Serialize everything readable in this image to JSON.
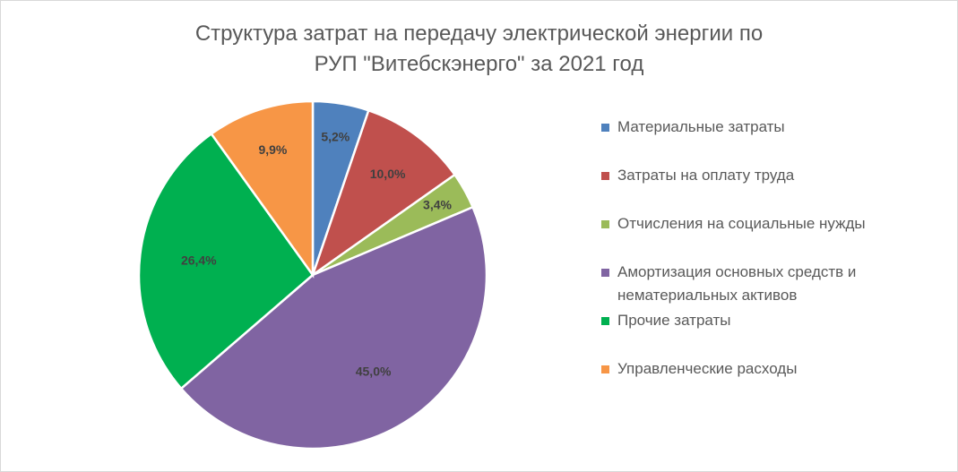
{
  "chart_data": {
    "type": "pie",
    "title": "Структура затрат на передачу электрической энергии по РУП \"Витебскэнерго\" за 2021 год",
    "title_lines": [
      "Структура затрат на передачу электрической энергии по",
      "РУП \"Витебскэнерго\" за 2021 год"
    ],
    "legend_position": "right",
    "slices": [
      {
        "label": "Материальные затраты",
        "value": 5.2,
        "display": "5,2%",
        "color": "#4f81bd"
      },
      {
        "label": "Затраты на оплату труда",
        "value": 10.0,
        "display": "10,0%",
        "color": "#c0504d"
      },
      {
        "label": "Отчисления на социальные нужды",
        "value": 3.4,
        "display": "3,4%",
        "color": "#9bbb59"
      },
      {
        "label": "Амортизация основных средств и нематериальных активов",
        "label_lines": [
          "Амортизация основных средств и",
          "нематериальных активов"
        ],
        "value": 45.0,
        "display": "45,0%",
        "color": "#8064a2"
      },
      {
        "label": "Прочие затраты",
        "value": 26.4,
        "display": "26,4%",
        "color": "#00b050"
      },
      {
        "label": "Управленческие расходы",
        "value": 9.9,
        "display": "9,9%",
        "color": "#f79646"
      }
    ]
  }
}
